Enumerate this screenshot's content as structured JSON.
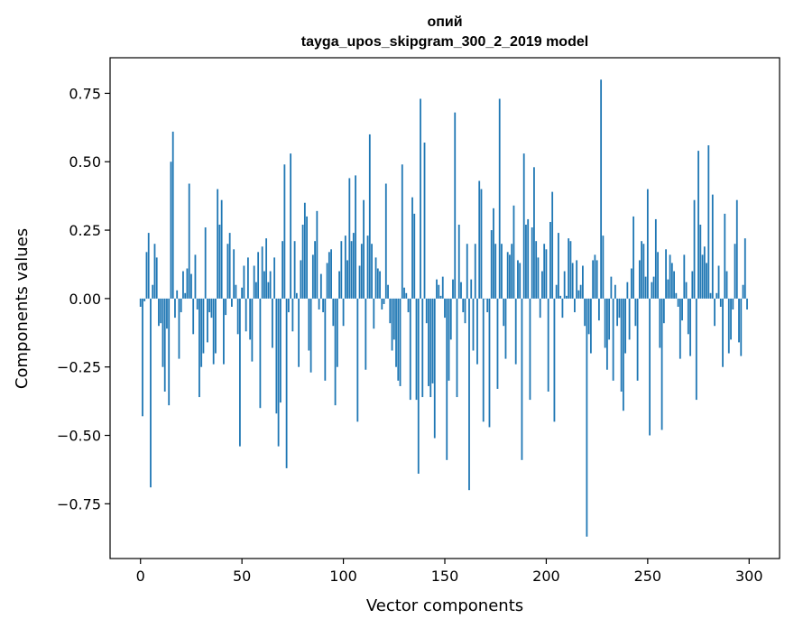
{
  "chart_data": {
    "type": "bar",
    "title": "опий",
    "subtitle": "tayga_upos_skipgram_300_2_2019 model",
    "xlabel": "Vector components",
    "ylabel": "Components values",
    "xlim": [
      -15,
      315
    ],
    "ylim": [
      -0.95,
      0.88
    ],
    "xticks": [
      0,
      50,
      100,
      150,
      200,
      250,
      300
    ],
    "xtick_labels": [
      "0",
      "50",
      "100",
      "150",
      "200",
      "250",
      "300"
    ],
    "yticks": [
      0.75,
      0.5,
      0.25,
      0.0,
      -0.25,
      -0.5,
      -0.75
    ],
    "ytick_labels": [
      "0.75",
      "0.50",
      "0.25",
      "0.00",
      "−0.25",
      "−0.50",
      "−0.75"
    ],
    "grid": false,
    "bar_color": "#1f77b4",
    "x": "0..299",
    "values": [
      -0.03,
      -0.43,
      -0.01,
      0.17,
      0.24,
      -0.69,
      0.05,
      0.2,
      0.15,
      -0.1,
      -0.09,
      -0.25,
      -0.34,
      -0.11,
      -0.39,
      0.5,
      0.61,
      -0.07,
      0.03,
      -0.22,
      -0.05,
      0.1,
      0.02,
      0.11,
      0.42,
      0.09,
      -0.13,
      0.16,
      -0.04,
      -0.36,
      -0.25,
      -0.2,
      0.26,
      -0.16,
      -0.05,
      -0.07,
      -0.24,
      -0.2,
      0.4,
      0.27,
      0.36,
      -0.24,
      -0.06,
      0.2,
      0.24,
      -0.03,
      0.18,
      0.05,
      -0.13,
      -0.54,
      0.04,
      0.12,
      -0.12,
      0.15,
      -0.15,
      -0.23,
      0.12,
      0.06,
      0.17,
      -0.4,
      0.19,
      0.1,
      0.22,
      0.06,
      0.1,
      -0.18,
      0.15,
      -0.42,
      -0.54,
      -0.38,
      0.21,
      0.49,
      -0.62,
      -0.05,
      0.53,
      -0.12,
      0.21,
      0.02,
      -0.25,
      0.14,
      0.27,
      0.35,
      0.3,
      -0.19,
      -0.27,
      0.16,
      0.21,
      0.32,
      -0.04,
      0.09,
      -0.05,
      -0.3,
      0.13,
      0.17,
      0.18,
      -0.1,
      -0.39,
      -0.25,
      0.1,
      0.21,
      -0.1,
      0.23,
      0.14,
      0.44,
      0.21,
      0.24,
      0.45,
      -0.45,
      0.12,
      0.2,
      0.36,
      -0.26,
      0.23,
      0.6,
      0.2,
      -0.11,
      0.15,
      0.11,
      0.1,
      -0.04,
      -0.02,
      0.42,
      0.05,
      -0.09,
      -0.19,
      -0.15,
      -0.25,
      -0.3,
      -0.32,
      0.49,
      0.04,
      0.02,
      -0.05,
      -0.37,
      0.37,
      0.31,
      -0.37,
      -0.64,
      0.73,
      -0.36,
      0.57,
      -0.09,
      -0.32,
      -0.36,
      -0.31,
      -0.51,
      0.07,
      0.05,
      0.01,
      0.08,
      -0.07,
      -0.59,
      -0.3,
      -0.15,
      0.07,
      0.68,
      -0.36,
      0.27,
      0.06,
      -0.05,
      -0.09,
      0.2,
      -0.7,
      0.07,
      -0.19,
      0.2,
      -0.24,
      0.43,
      0.4,
      -0.45,
      0.0,
      -0.05,
      -0.47,
      0.25,
      0.33,
      0.2,
      -0.33,
      0.73,
      0.2,
      -0.1,
      -0.22,
      0.17,
      0.16,
      0.2,
      0.34,
      -0.24,
      0.14,
      0.13,
      -0.59,
      0.53,
      0.27,
      0.29,
      -0.37,
      0.26,
      0.48,
      0.21,
      0.15,
      -0.07,
      0.1,
      0.2,
      0.18,
      -0.34,
      0.28,
      0.39,
      -0.45,
      0.05,
      0.24,
      0.01,
      -0.07,
      0.1,
      0.01,
      0.22,
      0.21,
      0.13,
      -0.05,
      0.14,
      0.03,
      0.05,
      0.12,
      -0.1,
      -0.87,
      -0.13,
      -0.2,
      0.14,
      0.16,
      0.14,
      -0.08,
      0.8,
      0.23,
      -0.18,
      -0.26,
      -0.15,
      0.08,
      -0.3,
      0.05,
      -0.1,
      -0.07,
      -0.34,
      -0.41,
      -0.2,
      0.06,
      -0.15,
      0.11,
      0.3,
      -0.1,
      -0.3,
      0.14,
      0.21,
      0.2,
      0.08,
      0.4,
      -0.5,
      0.06,
      0.08,
      0.29,
      0.17,
      -0.18,
      -0.48,
      -0.09,
      0.18,
      0.07,
      0.16,
      0.13,
      0.1,
      0.02,
      -0.03,
      -0.22,
      -0.08,
      0.16,
      0.06,
      -0.13,
      -0.21,
      0.1,
      0.36,
      -0.37,
      0.54,
      0.27,
      0.16,
      0.19,
      0.13,
      0.56,
      0.02,
      0.38,
      -0.1,
      0.02,
      0.12,
      -0.03,
      -0.25,
      0.31,
      0.1,
      -0.2,
      -0.15,
      -0.04,
      0.2,
      0.36,
      -0.16,
      -0.21,
      0.05,
      0.22,
      -0.04
    ]
  }
}
